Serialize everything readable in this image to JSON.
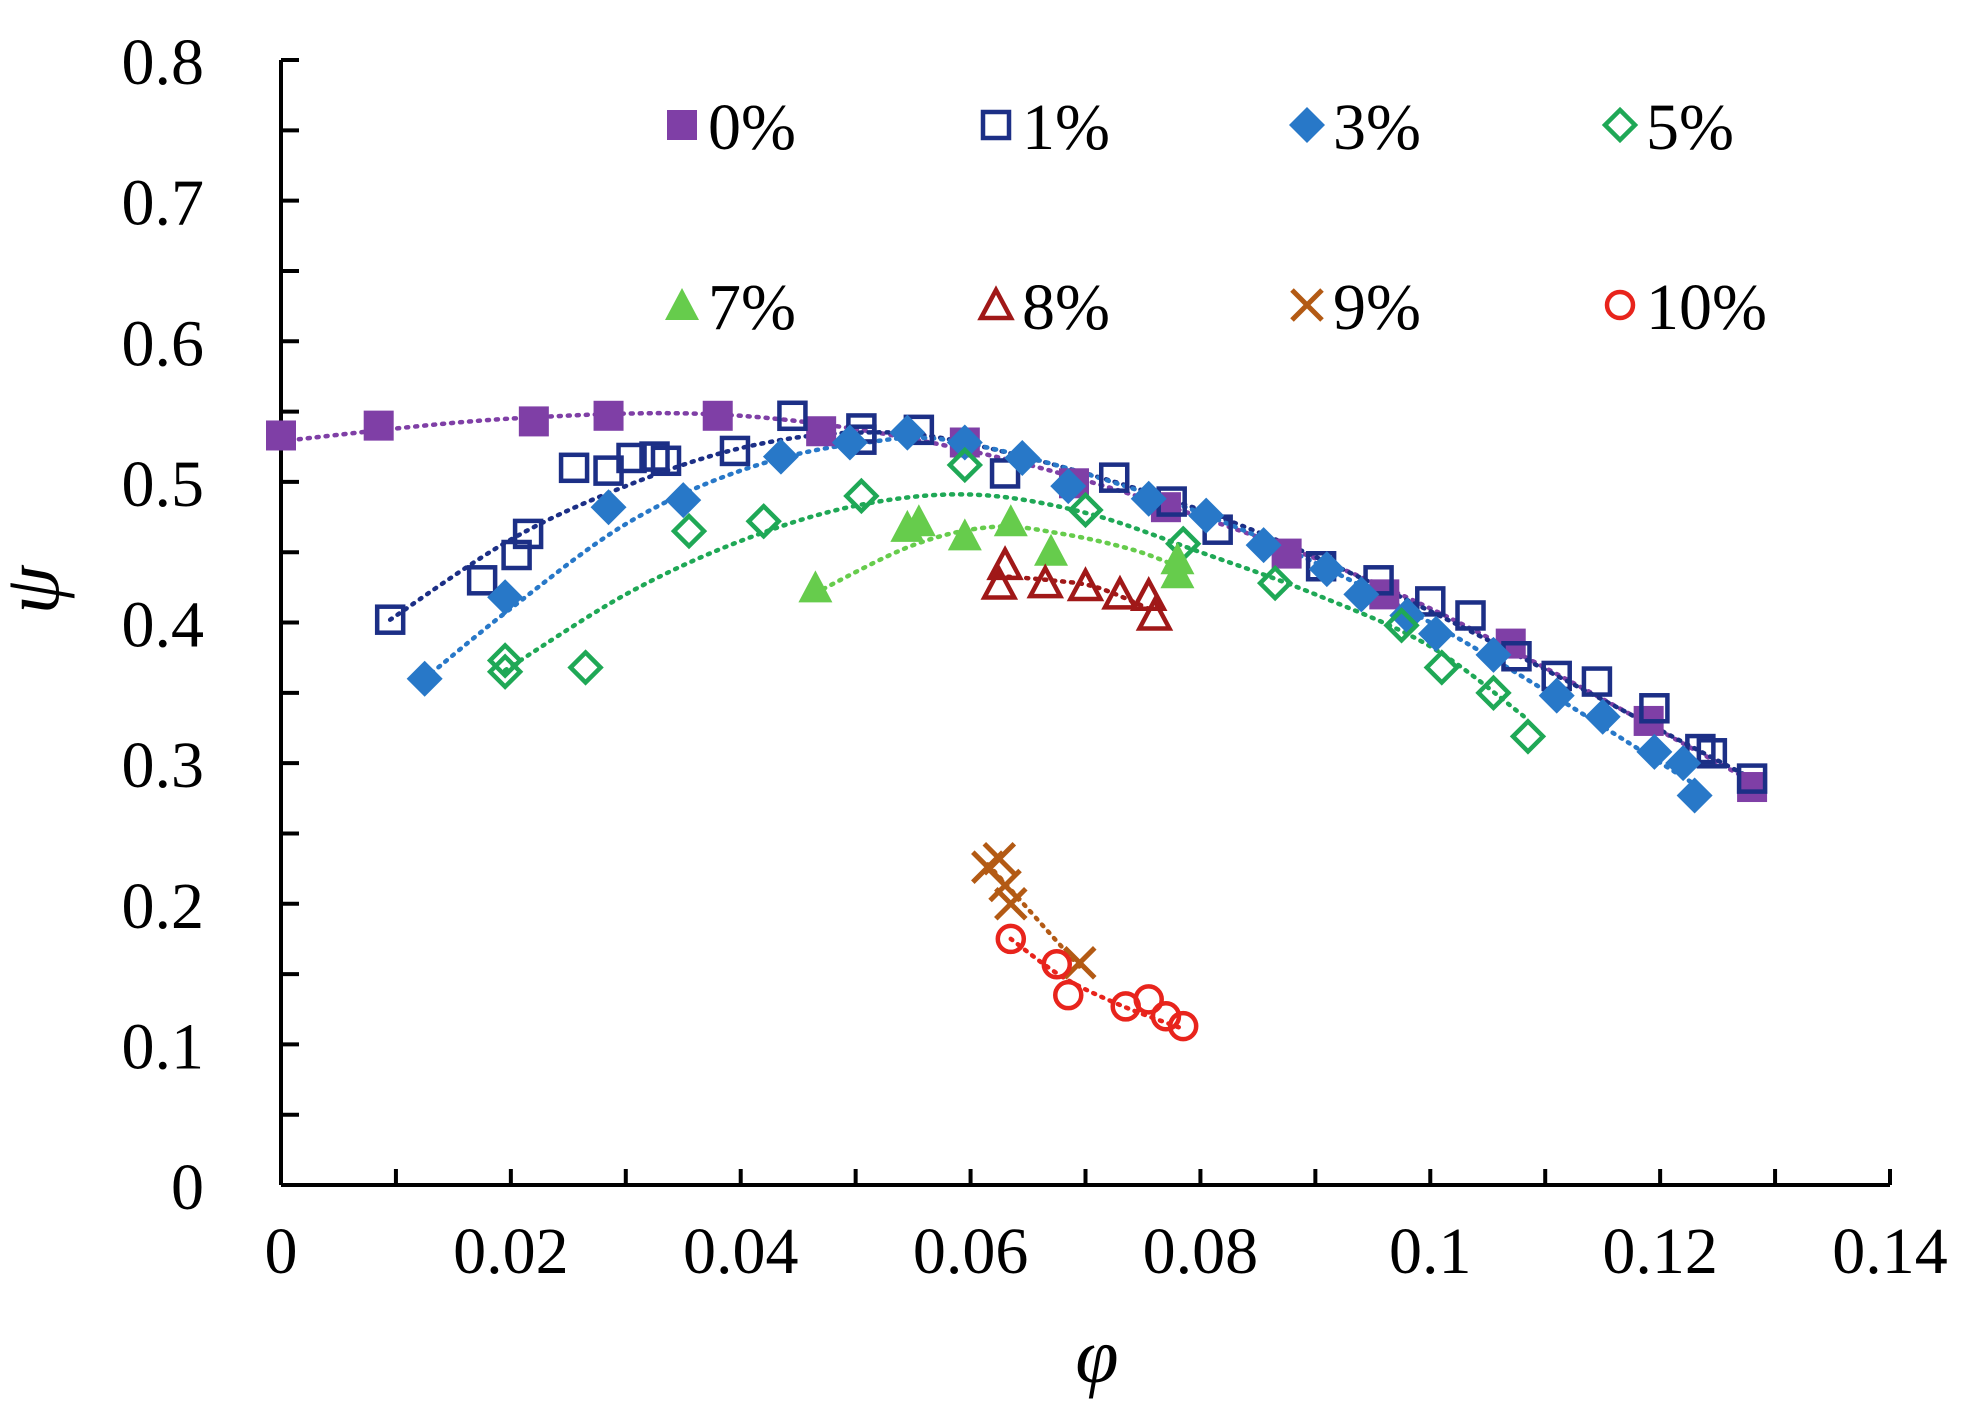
{
  "chart_data": {
    "type": "scatter",
    "title": "",
    "xlabel": "φ",
    "ylabel": "ψ",
    "xlim": [
      0,
      0.14
    ],
    "ylim": [
      0,
      0.8
    ],
    "x_ticks": [
      0,
      0.02,
      0.04,
      0.06,
      0.08,
      0.1,
      0.12,
      0.14
    ],
    "x_tick_labels": [
      "0",
      "0.02",
      "0.04",
      "0.06",
      "0.08",
      "0.1",
      "0.12",
      "0.14"
    ],
    "y_ticks": [
      0,
      0.1,
      0.2,
      0.3,
      0.4,
      0.5,
      0.6,
      0.7,
      0.8
    ],
    "y_tick_labels": [
      "0",
      "0.1",
      "0.2",
      "0.3",
      "0.4",
      "0.5",
      "0.6",
      "0.7",
      "0.8"
    ],
    "grid": false,
    "legend_position": "top-right",
    "trendlines": "dotted polynomial fit per series",
    "series": [
      {
        "name": "0%",
        "marker": "filled-square",
        "color": "#7f3fa6",
        "x": [
          0.0,
          0.0085,
          0.022,
          0.0285,
          0.038,
          0.047,
          0.0595,
          0.069,
          0.077,
          0.0875,
          0.096,
          0.107,
          0.119,
          0.128
        ],
        "y": [
          0.533,
          0.54,
          0.543,
          0.547,
          0.547,
          0.536,
          0.528,
          0.499,
          0.482,
          0.449,
          0.42,
          0.385,
          0.33,
          0.283
        ],
        "trend": [
          [
            0.0,
            0.529
          ],
          [
            0.02,
            0.545
          ],
          [
            0.04,
            0.547
          ],
          [
            0.06,
            0.522
          ],
          [
            0.08,
            0.475
          ],
          [
            0.1,
            0.41
          ],
          [
            0.128,
            0.287
          ]
        ]
      },
      {
        "name": "1%",
        "marker": "open-square",
        "color": "#1c2f86",
        "x": [
          0.0095,
          0.0175,
          0.0205,
          0.0215,
          0.0255,
          0.0285,
          0.0305,
          0.0325,
          0.0335,
          0.0395,
          0.0445,
          0.0505,
          0.0505,
          0.0555,
          0.063,
          0.0725,
          0.0775,
          0.0815,
          0.0905,
          0.0955,
          0.1,
          0.1035,
          0.1075,
          0.111,
          0.1145,
          0.1195,
          0.1235,
          0.1245,
          0.128
        ],
        "y": [
          0.402,
          0.43,
          0.448,
          0.463,
          0.51,
          0.508,
          0.517,
          0.518,
          0.515,
          0.522,
          0.547,
          0.538,
          0.53,
          0.537,
          0.506,
          0.503,
          0.486,
          0.466,
          0.44,
          0.43,
          0.415,
          0.405,
          0.376,
          0.362,
          0.358,
          0.339,
          0.31,
          0.307,
          0.289
        ],
        "trend": [
          [
            0.0095,
            0.402
          ],
          [
            0.02,
            0.459
          ],
          [
            0.03,
            0.497
          ],
          [
            0.04,
            0.524
          ],
          [
            0.05,
            0.535
          ],
          [
            0.06,
            0.527
          ],
          [
            0.08,
            0.48
          ],
          [
            0.1,
            0.408
          ],
          [
            0.128,
            0.289
          ]
        ]
      },
      {
        "name": "3%",
        "marker": "filled-diamond",
        "color": "#2878c8",
        "x": [
          0.0125,
          0.0195,
          0.0285,
          0.035,
          0.0435,
          0.0495,
          0.0545,
          0.0595,
          0.0645,
          0.0685,
          0.0755,
          0.0805,
          0.0855,
          0.091,
          0.094,
          0.098,
          0.1005,
          0.1055,
          0.111,
          0.115,
          0.1195,
          0.122,
          0.123
        ],
        "y": [
          0.36,
          0.418,
          0.482,
          0.487,
          0.518,
          0.528,
          0.535,
          0.528,
          0.517,
          0.497,
          0.488,
          0.476,
          0.455,
          0.438,
          0.42,
          0.405,
          0.392,
          0.377,
          0.348,
          0.333,
          0.308,
          0.3,
          0.277
        ],
        "trend": [
          [
            0.0125,
            0.36
          ],
          [
            0.02,
            0.41
          ],
          [
            0.03,
            0.47
          ],
          [
            0.04,
            0.508
          ],
          [
            0.05,
            0.527
          ],
          [
            0.06,
            0.527
          ],
          [
            0.08,
            0.478
          ],
          [
            0.1,
            0.4
          ],
          [
            0.123,
            0.285
          ]
        ]
      },
      {
        "name": "5%",
        "marker": "open-diamond",
        "color": "#1fa856",
        "x": [
          0.0195,
          0.0195,
          0.0265,
          0.0355,
          0.042,
          0.0505,
          0.0595,
          0.07,
          0.0785,
          0.0865,
          0.0975,
          0.101,
          0.1055,
          0.1085
        ],
        "y": [
          0.365,
          0.373,
          0.368,
          0.465,
          0.472,
          0.49,
          0.512,
          0.48,
          0.456,
          0.428,
          0.398,
          0.368,
          0.35,
          0.319
        ],
        "trend": [
          [
            0.0195,
            0.366
          ],
          [
            0.03,
            0.42
          ],
          [
            0.04,
            0.458
          ],
          [
            0.05,
            0.483
          ],
          [
            0.06,
            0.491
          ],
          [
            0.07,
            0.478
          ],
          [
            0.08,
            0.45
          ],
          [
            0.09,
            0.42
          ],
          [
            0.1,
            0.383
          ],
          [
            0.1085,
            0.331
          ]
        ]
      },
      {
        "name": "7%",
        "marker": "filled-triangle",
        "color": "#66cc4c",
        "x": [
          0.0465,
          0.0545,
          0.0555,
          0.0595,
          0.0635,
          0.067,
          0.078,
          0.078
        ],
        "y": [
          0.425,
          0.468,
          0.472,
          0.462,
          0.472,
          0.451,
          0.445,
          0.435
        ],
        "trend": [
          [
            0.0465,
            0.421
          ],
          [
            0.055,
            0.455
          ],
          [
            0.062,
            0.468
          ],
          [
            0.068,
            0.463
          ],
          [
            0.074,
            0.452
          ],
          [
            0.078,
            0.44
          ]
        ]
      },
      {
        "name": "8%",
        "marker": "open-triangle",
        "color": "#a01818",
        "x": [
          0.0625,
          0.063,
          0.0665,
          0.07,
          0.073,
          0.0755,
          0.076
        ],
        "y": [
          0.427,
          0.441,
          0.428,
          0.426,
          0.42,
          0.419,
          0.405
        ],
        "trend": [
          [
            0.0625,
            0.433
          ],
          [
            0.067,
            0.43
          ],
          [
            0.071,
            0.425
          ],
          [
            0.076,
            0.408
          ]
        ]
      },
      {
        "name": "9%",
        "marker": "cross",
        "color": "#b35a14",
        "x": [
          0.0615,
          0.0625,
          0.063,
          0.0635,
          0.0695
        ],
        "y": [
          0.226,
          0.232,
          0.213,
          0.2,
          0.158
        ],
        "trend": [
          [
            0.0615,
            0.228
          ],
          [
            0.0635,
            0.21
          ],
          [
            0.0695,
            0.155
          ]
        ]
      },
      {
        "name": "10%",
        "marker": "open-circle",
        "color": "#e8241c",
        "x": [
          0.0635,
          0.0675,
          0.0685,
          0.0735,
          0.0755,
          0.077,
          0.0785
        ],
        "y": [
          0.175,
          0.157,
          0.135,
          0.127,
          0.132,
          0.12,
          0.113
        ],
        "trend": [
          [
            0.0635,
            0.175
          ],
          [
            0.068,
            0.148
          ],
          [
            0.073,
            0.128
          ],
          [
            0.0785,
            0.111
          ]
        ]
      }
    ]
  }
}
